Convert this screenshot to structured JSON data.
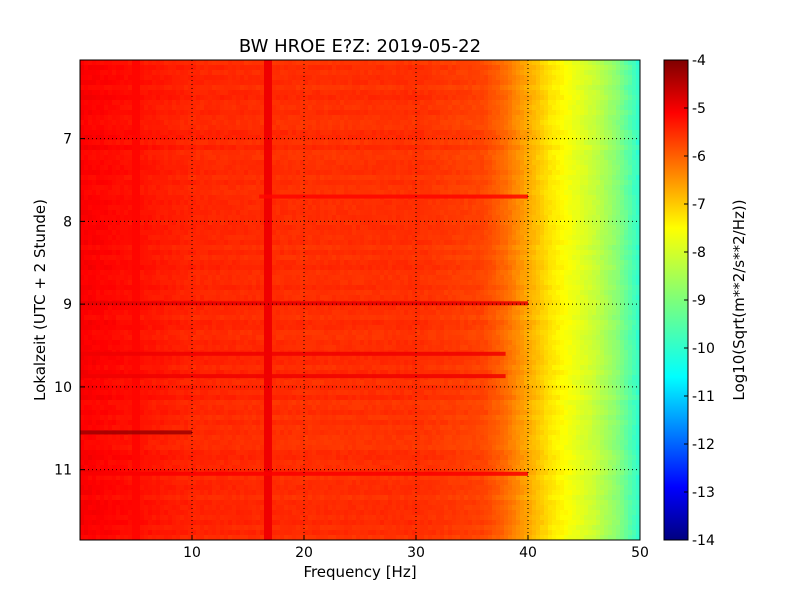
{
  "chart_data": {
    "type": "heatmap",
    "title": "BW HROE E?Z: 2019-05-22",
    "xlabel": "Frequency [Hz]",
    "ylabel": "Lokalzeit (UTC + 2 Stunde)",
    "xlim": [
      0,
      50
    ],
    "ylim": [
      11.85,
      6.05
    ],
    "x_ticks": [
      "10",
      "20",
      "30",
      "40",
      "50"
    ],
    "x_tick_values": [
      10,
      20,
      30,
      40,
      50
    ],
    "y_ticks": [
      "7",
      "8",
      "9",
      "10",
      "11"
    ],
    "y_tick_values": [
      7,
      8,
      9,
      10,
      11
    ],
    "grid": true,
    "colormap": "jet",
    "colorbar": {
      "label": "Log10(Sqrt(m**2/s**2/Hz))",
      "range": [
        -14,
        -4
      ],
      "ticks": [
        "-4",
        "-5",
        "-6",
        "-7",
        "-8",
        "-9",
        "-10",
        "-11",
        "-12",
        "-13",
        "-14"
      ],
      "tick_values": [
        -4,
        -5,
        -6,
        -7,
        -8,
        -9,
        -10,
        -11,
        -12,
        -13,
        -14
      ]
    },
    "spectrum_profile": [
      {
        "freq": 0,
        "value": -5.2
      },
      {
        "freq": 10,
        "value": -5.6
      },
      {
        "freq": 20,
        "value": -5.7
      },
      {
        "freq": 30,
        "value": -5.7
      },
      {
        "freq": 36,
        "value": -5.9
      },
      {
        "freq": 38,
        "value": -6.3
      },
      {
        "freq": 40,
        "value": -6.9
      },
      {
        "freq": 42,
        "value": -7.5
      },
      {
        "freq": 44,
        "value": -7.9
      },
      {
        "freq": 46,
        "value": -8.3
      },
      {
        "freq": 48,
        "value": -8.9
      },
      {
        "freq": 50,
        "value": -9.8
      }
    ],
    "dark_bands": [
      {
        "time": 7.7,
        "freq_range": [
          16,
          40
        ],
        "value": -5.3
      },
      {
        "time": 8.99,
        "freq_range": [
          0,
          40
        ],
        "value": -5.0
      },
      {
        "time": 9.6,
        "freq_range": [
          0,
          38
        ],
        "value": -5.1
      },
      {
        "time": 9.87,
        "freq_range": [
          0,
          38
        ],
        "value": -5.1
      },
      {
        "time": 10.55,
        "freq_range": [
          0,
          10
        ],
        "value": -4.3
      },
      {
        "time": 11.05,
        "freq_range": [
          0,
          40
        ],
        "value": -5.2
      }
    ],
    "vertical_lines": [
      {
        "freq": 5,
        "value": -5.3
      },
      {
        "freq": 16.7,
        "value": -5.1
      }
    ]
  }
}
